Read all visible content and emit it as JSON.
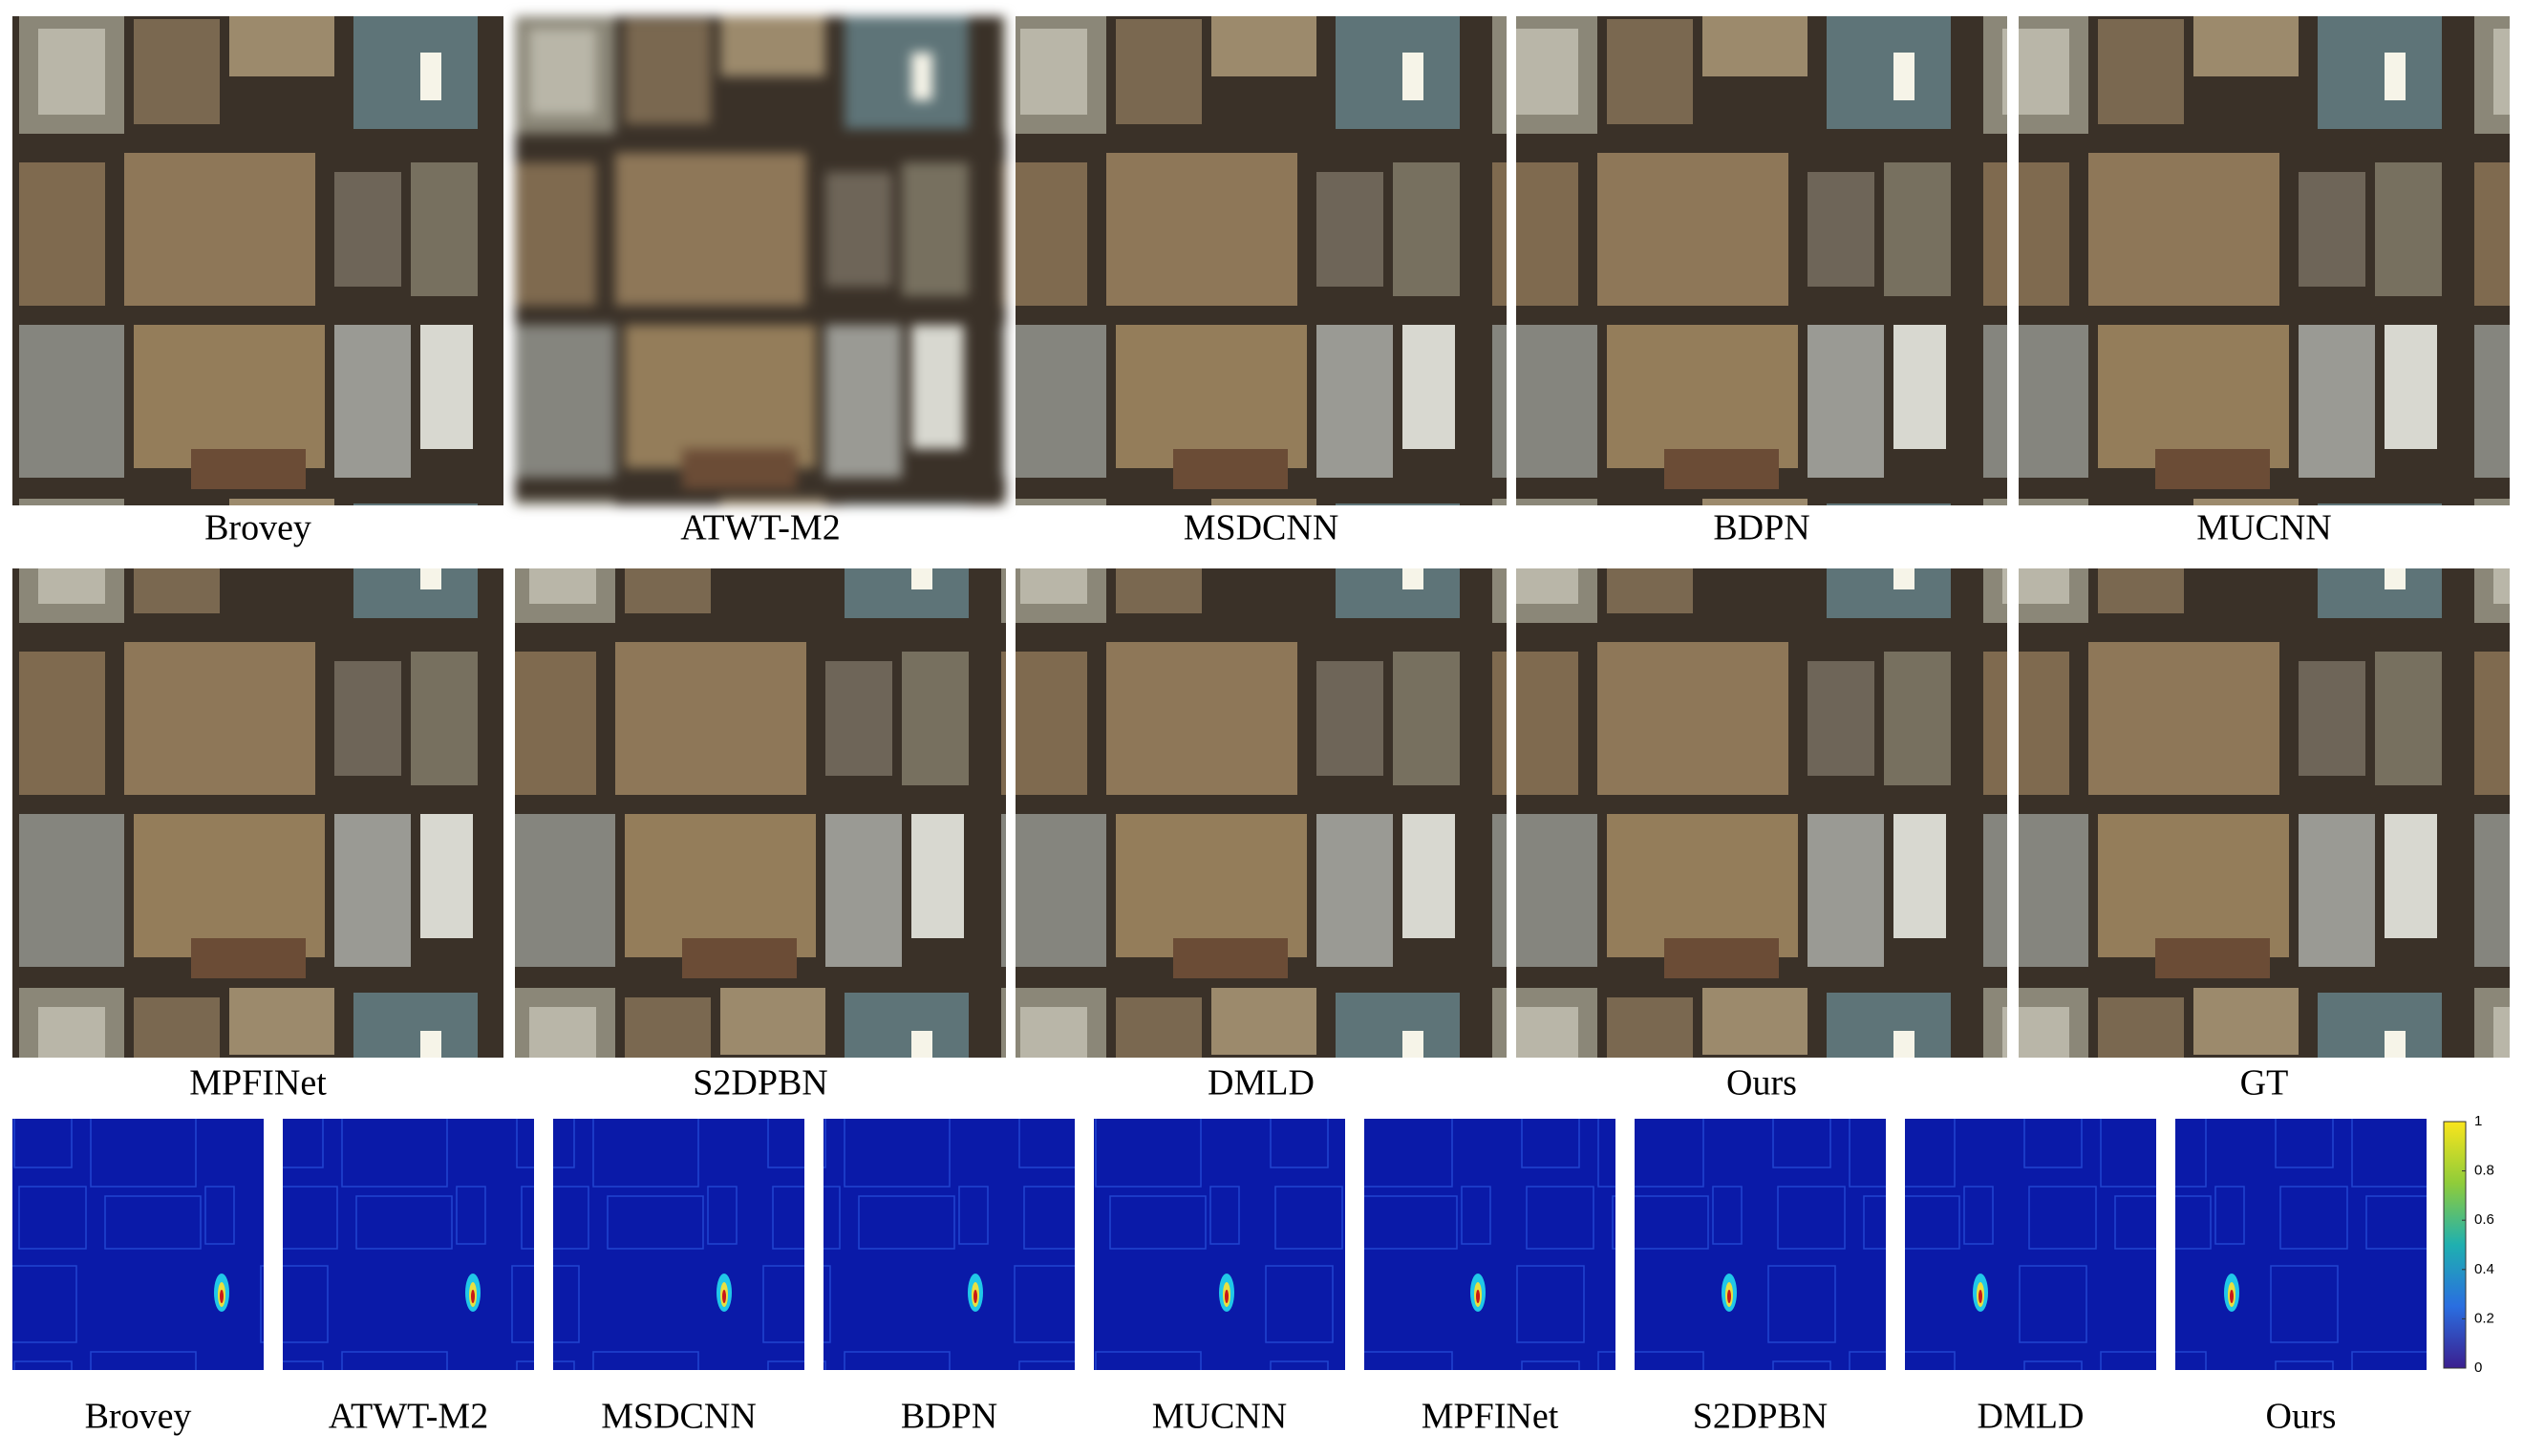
{
  "rows": [
    {
      "labels": [
        "Brovey",
        "ATWT-M2",
        "MSDCNN",
        "BDPN",
        "MUCNN"
      ]
    },
    {
      "labels": [
        "MPFINet",
        "S2DPBN",
        "DMLD",
        "Ours",
        "GT"
      ]
    }
  ],
  "error_maps": {
    "labels": [
      "Brovey",
      "ATWT-M2",
      "MSDCNN",
      "BDPN",
      "MUCNN",
      "MPFINet",
      "S2DPBN",
      "DMLD",
      "Ours"
    ]
  },
  "colorbar": {
    "ticks": [
      0,
      0.2,
      0.4,
      0.6,
      0.8,
      1
    ]
  }
}
